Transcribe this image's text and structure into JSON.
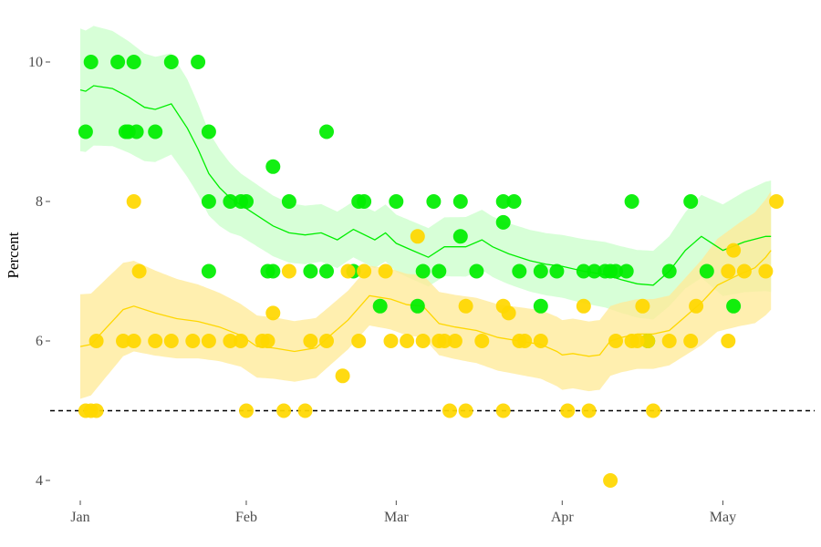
{
  "chart_data": {
    "type": "scatter",
    "ylabel": "Percent",
    "xlabel": "",
    "x_ticks": [
      "Jan",
      "Feb",
      "Mar",
      "Apr",
      "May"
    ],
    "x_tick_days": [
      0,
      31,
      59,
      90,
      120
    ],
    "xlim": [
      -0.5,
      135
    ],
    "y_ticks": [
      4,
      6,
      8,
      10
    ],
    "ylim": [
      3.6,
      10.45
    ],
    "reference_line": {
      "y": 5,
      "style": "dashed"
    },
    "grid": false,
    "legend": "none",
    "series": [
      {
        "color": "#00ee00",
        "band_color": "#ccffcc",
        "trend": [
          [
            0,
            9.6
          ],
          [
            1,
            9.58
          ],
          [
            2.5,
            9.66
          ],
          [
            6,
            9.62
          ],
          [
            9,
            9.5
          ],
          [
            12,
            9.35
          ],
          [
            14,
            9.32
          ],
          [
            17,
            9.4
          ],
          [
            20,
            9.05
          ],
          [
            22,
            8.75
          ],
          [
            24,
            8.4
          ],
          [
            26,
            8.2
          ],
          [
            28,
            8.05
          ],
          [
            30,
            7.95
          ],
          [
            33,
            7.8
          ],
          [
            36,
            7.65
          ],
          [
            39,
            7.55
          ],
          [
            42,
            7.52
          ],
          [
            45,
            7.55
          ],
          [
            48,
            7.45
          ],
          [
            51,
            7.6
          ],
          [
            55,
            7.45
          ],
          [
            57,
            7.55
          ],
          [
            59,
            7.4
          ],
          [
            62,
            7.3
          ],
          [
            65,
            7.2
          ],
          [
            68,
            7.35
          ],
          [
            72,
            7.35
          ],
          [
            75,
            7.45
          ],
          [
            77,
            7.35
          ],
          [
            80,
            7.25
          ],
          [
            84,
            7.15
          ],
          [
            87,
            7.1
          ],
          [
            90,
            7.07
          ],
          [
            94,
            7.0
          ],
          [
            98,
            6.95
          ],
          [
            101,
            6.88
          ],
          [
            104,
            6.82
          ],
          [
            107,
            6.8
          ],
          [
            110,
            7.0
          ],
          [
            113,
            7.3
          ],
          [
            116,
            7.5
          ],
          [
            120,
            7.3
          ],
          [
            124,
            7.42
          ],
          [
            128,
            7.5
          ],
          [
            129,
            7.5
          ]
        ],
        "band_width": [
          [
            0,
            0.88
          ],
          [
            20,
            0.7
          ],
          [
            30,
            0.45
          ],
          [
            50,
            0.4
          ],
          [
            90,
            0.45
          ],
          [
            110,
            0.5
          ],
          [
            129,
            0.8
          ]
        ],
        "points": [
          [
            1,
            9
          ],
          [
            2,
            10
          ],
          [
            7,
            10
          ],
          [
            8.5,
            9
          ],
          [
            10,
            10
          ],
          [
            9,
            9
          ],
          [
            10.5,
            9
          ],
          [
            14,
            9
          ],
          [
            17,
            10
          ],
          [
            22,
            10
          ],
          [
            24,
            9
          ],
          [
            24,
            8
          ],
          [
            24,
            7
          ],
          [
            28,
            8
          ],
          [
            30,
            8
          ],
          [
            31,
            8
          ],
          [
            35,
            7
          ],
          [
            36,
            7
          ],
          [
            36,
            8.5
          ],
          [
            39,
            8
          ],
          [
            43,
            7
          ],
          [
            46,
            7
          ],
          [
            46,
            9
          ],
          [
            51,
            7
          ],
          [
            52,
            8
          ],
          [
            53,
            8
          ],
          [
            56,
            6.5
          ],
          [
            59,
            8
          ],
          [
            63,
            6.5
          ],
          [
            64,
            7
          ],
          [
            66,
            8
          ],
          [
            67,
            7
          ],
          [
            71,
            7.5
          ],
          [
            71,
            8
          ],
          [
            74,
            7
          ],
          [
            79,
            7.7
          ],
          [
            79,
            8
          ],
          [
            81,
            8
          ],
          [
            82,
            7
          ],
          [
            86,
            6.5
          ],
          [
            86,
            7
          ],
          [
            89,
            7
          ],
          [
            94,
            7
          ],
          [
            96,
            7
          ],
          [
            98,
            7
          ],
          [
            99,
            7
          ],
          [
            100,
            7
          ],
          [
            102,
            7
          ],
          [
            103,
            8
          ],
          [
            106,
            6
          ],
          [
            110,
            7
          ],
          [
            114,
            8
          ],
          [
            117,
            7
          ],
          [
            122,
            6.5
          ]
        ]
      },
      {
        "color": "#ffd700",
        "band_color": "#ffeb99",
        "trend": [
          [
            0,
            5.92
          ],
          [
            2,
            5.95
          ],
          [
            5,
            6.2
          ],
          [
            8,
            6.45
          ],
          [
            10,
            6.5
          ],
          [
            14,
            6.4
          ],
          [
            18,
            6.32
          ],
          [
            22,
            6.28
          ],
          [
            26,
            6.2
          ],
          [
            30,
            6.08
          ],
          [
            33,
            5.92
          ],
          [
            36,
            5.9
          ],
          [
            40,
            5.85
          ],
          [
            44,
            5.9
          ],
          [
            47,
            6.1
          ],
          [
            50,
            6.3
          ],
          [
            54,
            6.65
          ],
          [
            58,
            6.6
          ],
          [
            61,
            6.52
          ],
          [
            64,
            6.5
          ],
          [
            67,
            6.25
          ],
          [
            70,
            6.2
          ],
          [
            74,
            6.15
          ],
          [
            78,
            6.05
          ],
          [
            82,
            6.0
          ],
          [
            86,
            5.95
          ],
          [
            89,
            5.85
          ],
          [
            90,
            5.8
          ],
          [
            92,
            5.82
          ],
          [
            95,
            5.78
          ],
          [
            97,
            5.8
          ],
          [
            99,
            6.0
          ],
          [
            101,
            6.05
          ],
          [
            104,
            6.1
          ],
          [
            107,
            6.1
          ],
          [
            110,
            6.15
          ],
          [
            113,
            6.35
          ],
          [
            116,
            6.55
          ],
          [
            119,
            6.8
          ],
          [
            123,
            6.95
          ],
          [
            126,
            7.05
          ],
          [
            128,
            7.2
          ],
          [
            129,
            7.3
          ]
        ],
        "band_width": [
          [
            0,
            0.75
          ],
          [
            10,
            0.65
          ],
          [
            30,
            0.45
          ],
          [
            50,
            0.42
          ],
          [
            90,
            0.5
          ],
          [
            110,
            0.5
          ],
          [
            129,
            0.85
          ]
        ],
        "points": [
          [
            1,
            5
          ],
          [
            2,
            5
          ],
          [
            3,
            5
          ],
          [
            3,
            6
          ],
          [
            8,
            6
          ],
          [
            10,
            6
          ],
          [
            10,
            8
          ],
          [
            11,
            7
          ],
          [
            14,
            6
          ],
          [
            17,
            6
          ],
          [
            21,
            6
          ],
          [
            24,
            6
          ],
          [
            28,
            6
          ],
          [
            30,
            6
          ],
          [
            31,
            5
          ],
          [
            34,
            6
          ],
          [
            35,
            6
          ],
          [
            36,
            6.4
          ],
          [
            38,
            5
          ],
          [
            39,
            7
          ],
          [
            42,
            5
          ],
          [
            43,
            6
          ],
          [
            46,
            6
          ],
          [
            49,
            5.5
          ],
          [
            50,
            7
          ],
          [
            52,
            6
          ],
          [
            53,
            7
          ],
          [
            57,
            7
          ],
          [
            58,
            6
          ],
          [
            61,
            6
          ],
          [
            63,
            7.5
          ],
          [
            64,
            6
          ],
          [
            67,
            6
          ],
          [
            68,
            6
          ],
          [
            69,
            5
          ],
          [
            70,
            6
          ],
          [
            72,
            6.5
          ],
          [
            72,
            5
          ],
          [
            75,
            6
          ],
          [
            79,
            6.5
          ],
          [
            79,
            5
          ],
          [
            80,
            6.4
          ],
          [
            82,
            6
          ],
          [
            83,
            6
          ],
          [
            86,
            6
          ],
          [
            91,
            5
          ],
          [
            94,
            6.5
          ],
          [
            95,
            5
          ],
          [
            99,
            4
          ],
          [
            100,
            6
          ],
          [
            103,
            6
          ],
          [
            104,
            6
          ],
          [
            105,
            6.5
          ],
          [
            106,
            6
          ],
          [
            107,
            5
          ],
          [
            110,
            6
          ],
          [
            114,
            6
          ],
          [
            115,
            6.5
          ],
          [
            121,
            6
          ],
          [
            121,
            7
          ],
          [
            122,
            7.3
          ],
          [
            124,
            7
          ],
          [
            128,
            7
          ],
          [
            130,
            8
          ]
        ]
      }
    ]
  }
}
